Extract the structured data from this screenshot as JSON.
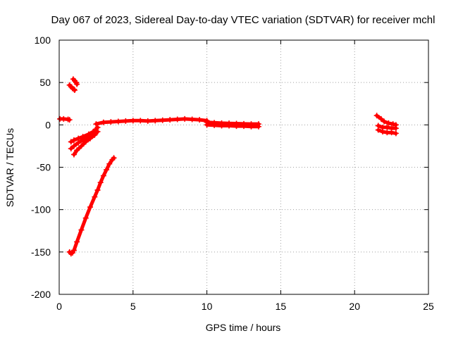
{
  "chart_data": {
    "type": "scatter",
    "title": "Day 067 of 2023, Sidereal Day-to-day VTEC variation (SDTVAR) for receiver mchl",
    "xlabel": "GPS time / hours",
    "ylabel": "SDTVAR / TECUs",
    "xlim": [
      0,
      25
    ],
    "ylim": [
      -200,
      100
    ],
    "xticks": [
      0,
      5,
      10,
      15,
      20,
      25
    ],
    "yticks": [
      -200,
      -150,
      -100,
      -50,
      0,
      50,
      100
    ],
    "grid": true,
    "legend": "none",
    "marker": "plus",
    "color": "#ff0000",
    "series": [
      {
        "x": [
          0.05,
          0.3,
          0.6,
          0.7
        ],
        "y": [
          7,
          7,
          6.5,
          6
        ]
      },
      {
        "x": [
          0.7,
          0.8,
          0.9,
          1.0,
          1.05
        ],
        "y": [
          47,
          45,
          43,
          42,
          41
        ]
      },
      {
        "x": [
          0.95,
          1.05,
          1.15,
          1.2
        ],
        "y": [
          54,
          52,
          50,
          48
        ]
      },
      {
        "x": [
          0.7,
          0.8,
          0.9,
          1.0,
          1.2,
          1.5,
          1.8,
          2.1,
          2.4,
          2.6
        ],
        "y": [
          -150,
          -152,
          -151,
          -148,
          -138,
          -124,
          -110,
          -97,
          -85,
          -77
        ]
      },
      {
        "x": [
          2.6,
          2.8,
          3.0,
          3.2,
          3.4,
          3.6,
          3.7
        ],
        "y": [
          -77,
          -68,
          -60,
          -53,
          -46,
          -41,
          -39
        ]
      },
      {
        "x": [
          0.8,
          1.0,
          1.3,
          1.6,
          2.0,
          2.3,
          2.5,
          2.6
        ],
        "y": [
          -20,
          -18,
          -16,
          -14,
          -11,
          -8,
          -5,
          -3
        ]
      },
      {
        "x": [
          0.8,
          1.0,
          1.3,
          1.6,
          1.9,
          2.2,
          2.5
        ],
        "y": [
          -28,
          -25,
          -21,
          -18,
          -15,
          -12,
          -9
        ]
      },
      {
        "x": [
          1.0,
          1.2,
          1.5,
          1.8,
          2.1,
          2.4,
          2.6
        ],
        "y": [
          -35,
          -30,
          -25,
          -20,
          -16,
          -12,
          -8
        ]
      },
      {
        "x": [
          2.5,
          3.0,
          3.5,
          4.0,
          4.5,
          5.0,
          5.5,
          6.0,
          6.5,
          7.0,
          7.5,
          8.0,
          8.5,
          9.0,
          9.5,
          10.0
        ],
        "y": [
          1,
          3,
          3.5,
          4,
          4.5,
          5,
          5,
          4.5,
          5,
          5.5,
          6,
          6.5,
          7,
          6.5,
          6,
          5
        ]
      },
      {
        "x": [
          10.0,
          10.5,
          11.0,
          11.5,
          12.0,
          12.5,
          13.0,
          13.5
        ],
        "y": [
          3,
          2.5,
          2,
          1.8,
          1.5,
          1.2,
          1,
          1
        ]
      },
      {
        "x": [
          10.0,
          10.5,
          11.0,
          11.5,
          12.0,
          12.5,
          13.0,
          13.5
        ],
        "y": [
          0,
          -0.5,
          -1,
          -1,
          -1.5,
          -1.5,
          -2,
          -2
        ]
      },
      {
        "x": [
          21.5,
          21.8,
          22.0,
          22.3,
          22.6,
          22.8
        ],
        "y": [
          11,
          7,
          4,
          2,
          1,
          0
        ]
      },
      {
        "x": [
          21.6,
          21.9,
          22.2,
          22.5,
          22.8
        ],
        "y": [
          -1,
          -3,
          -3,
          -4,
          -4
        ]
      },
      {
        "x": [
          21.6,
          21.9,
          22.2,
          22.5,
          22.8
        ],
        "y": [
          -6,
          -8,
          -9,
          -9,
          -10
        ]
      }
    ]
  }
}
